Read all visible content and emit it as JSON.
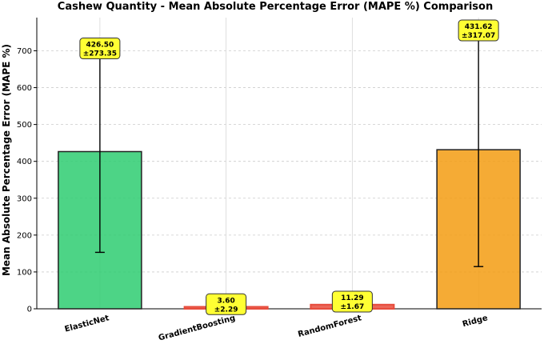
{
  "chart_data": {
    "type": "bar",
    "title": "Cashew Quantity - Mean Absolute Percentage Error (MAPE %) Comparison",
    "xlabel": "",
    "ylabel": "Mean Absolute Percentage Error (MAPE %)",
    "categories": [
      "ElasticNet",
      "GradientBoosting",
      "RandomForest",
      "Ridge"
    ],
    "values": [
      426.5,
      3.6,
      11.29,
      431.62
    ],
    "errors": [
      273.35,
      2.29,
      1.67,
      317.07
    ],
    "value_labels": [
      "426.50",
      "3.60",
      "11.29",
      "431.62"
    ],
    "error_labels": [
      "±273.35",
      "±2.29",
      "±1.67",
      "±317.07"
    ],
    "colors": [
      "#2ecc71",
      "#e74c3c",
      "#e74c3c",
      "#f39c12"
    ],
    "ylim": [
      0,
      790
    ],
    "yticks": [
      0,
      100,
      200,
      300,
      400,
      500,
      600,
      700
    ],
    "grid": true,
    "label_box_color": "#ffff33"
  }
}
